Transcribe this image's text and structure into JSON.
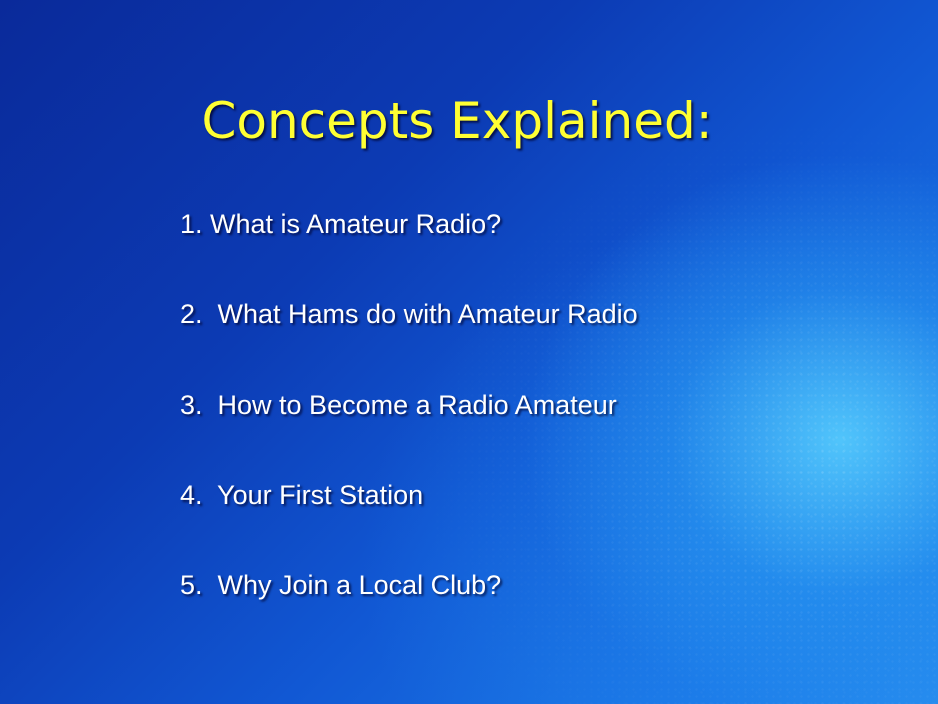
{
  "slide": {
    "title": "Concepts Explained:",
    "items": [
      {
        "label": "1. What is Amateur Radio?"
      },
      {
        "label": "2.  What Hams do with Amateur Radio"
      },
      {
        "label": "3.  How to Become a Radio Amateur"
      },
      {
        "label": "4.  Your First Station"
      },
      {
        "label": "5.  Why Join a Local Club?"
      }
    ],
    "colors": {
      "title": "#ffff33",
      "text": "#ffffff",
      "background_dark": "#0a2a9a",
      "background_light": "#5ad2ff"
    }
  }
}
